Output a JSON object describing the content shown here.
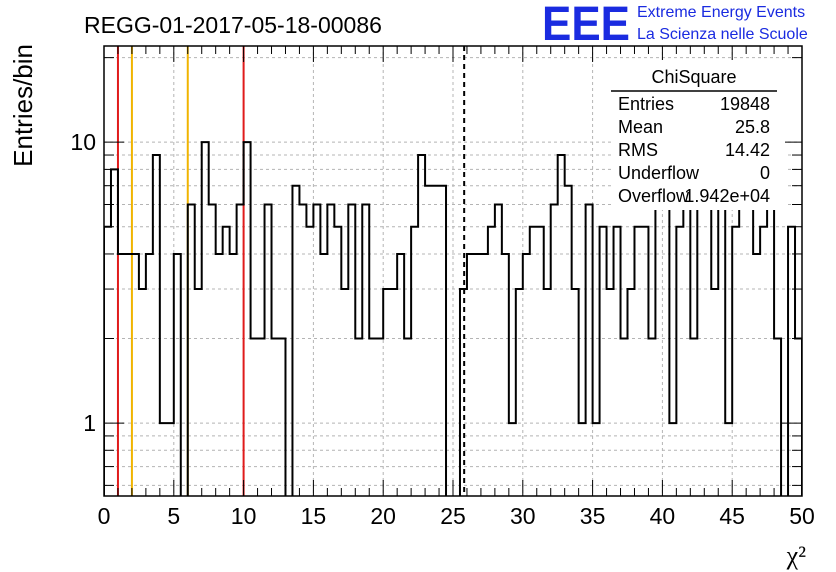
{
  "chart_data": {
    "type": "bar",
    "title": "REGG-01-2017-05-18-00086",
    "xlabel": "χ²",
    "ylabel": "Entries/bin",
    "xlim": [
      0,
      50
    ],
    "ylim": [
      0.55,
      22
    ],
    "log_y": true,
    "grid": true,
    "x_ticks": [
      "0",
      "5",
      "10",
      "15",
      "20",
      "25",
      "30",
      "35",
      "40",
      "45",
      "50"
    ],
    "y_ticks": [
      "1",
      "10"
    ],
    "bin_width": 0.5,
    "values": [
      5,
      8,
      4,
      4,
      4,
      3,
      4,
      9,
      1,
      1,
      4,
      0,
      6,
      3,
      10,
      6,
      4,
      5,
      4,
      6,
      10,
      2,
      2,
      6,
      2,
      2,
      0,
      7,
      6,
      5,
      6,
      4,
      6,
      5,
      3,
      6,
      2,
      6,
      2,
      2,
      3,
      3,
      4,
      2,
      5,
      9,
      7,
      7,
      7,
      0,
      0,
      3,
      4,
      4,
      4,
      5,
      6,
      4,
      1,
      3,
      4,
      5,
      5,
      3,
      6,
      9,
      7,
      3,
      1,
      6,
      1,
      5,
      3,
      5,
      2,
      3,
      5,
      5,
      2,
      6,
      6,
      1,
      5,
      6,
      2,
      12,
      6,
      3,
      6,
      1,
      5,
      6,
      7,
      4,
      5,
      7,
      2,
      0,
      5,
      2
    ],
    "reference_lines": [
      {
        "x": 1,
        "color": "#e01b1b",
        "style": "solid"
      },
      {
        "x": 2,
        "color": "#f0b400",
        "style": "solid"
      },
      {
        "x": 6,
        "color": "#f0b400",
        "style": "solid"
      },
      {
        "x": 10,
        "color": "#e01b1b",
        "style": "solid"
      },
      {
        "x": 25.8,
        "color": "#000000",
        "style": "dashed"
      }
    ],
    "stats_box": {
      "title": "ChiSquare",
      "rows": [
        {
          "label": "Entries",
          "value": "19848"
        },
        {
          "label": "Mean",
          "value": "25.8"
        },
        {
          "label": "RMS",
          "value": "14.42"
        },
        {
          "label": "Underflow",
          "value": "0"
        },
        {
          "label": "Overflow",
          "value": "1.942e+04"
        }
      ]
    }
  },
  "branding": {
    "logo": "EEE",
    "line1": "Extreme Energy Events",
    "line2": "La Scienza nelle Scuole",
    "color": "#1a2be0"
  }
}
